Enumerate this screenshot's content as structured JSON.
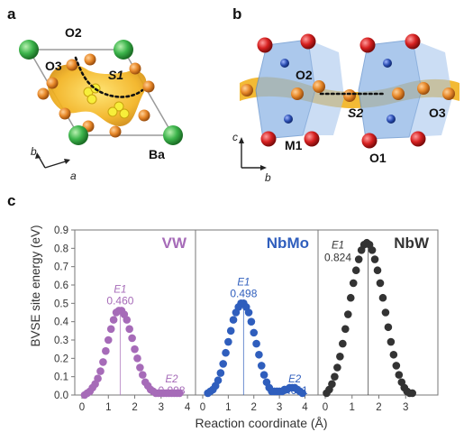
{
  "panels": {
    "a": {
      "letter": "a",
      "labels": {
        "o2": "O2",
        "o3": "O3",
        "s1": "S1",
        "ba": "Ba",
        "axis_b": "b",
        "axis_a": "a"
      }
    },
    "b": {
      "letter": "b",
      "labels": {
        "o2": "O2",
        "s2": "S2",
        "o3": "O3",
        "m1": "M1",
        "o1": "O1",
        "axis_c": "c",
        "axis_b": "b"
      }
    },
    "c": {
      "letter": "c"
    }
  },
  "colors": {
    "ba": "#3cb44b",
    "oxygen_orange": "#e8892a",
    "oxygen_red": "#d62020",
    "metal_blue": "#2a4db0",
    "polyhedra": "#8fb6e6",
    "isosurface": "#f2b21f",
    "path_dots": "#111111",
    "vw": "#a66bb8",
    "nbmo": "#2f5ebd",
    "nbw": "#333333"
  },
  "chart_data": {
    "type": "scatter",
    "ylabel": "BVSE site energy (eV)",
    "xlabel": "Reaction coordinate (Å)",
    "ylim": [
      0,
      0.9
    ],
    "yticks": [
      "0.0",
      "0.1",
      "0.2",
      "0.3",
      "0.4",
      "0.5",
      "0.6",
      "0.7",
      "0.8",
      "0.9"
    ],
    "subplots": [
      {
        "name": "VW",
        "xlim": [
          0,
          4.1
        ],
        "xticks": [
          "0",
          "1",
          "2",
          "3",
          "4"
        ],
        "peak_x": 1.45,
        "annotations": {
          "e1": "E1",
          "e1_value": "0.460",
          "e2": "E2",
          "e2_value": "0.008"
        },
        "x": [
          0.1,
          0.2,
          0.3,
          0.4,
          0.5,
          0.6,
          0.7,
          0.8,
          0.9,
          1.0,
          1.1,
          1.2,
          1.3,
          1.4,
          1.5,
          1.6,
          1.7,
          1.8,
          1.9,
          2.0,
          2.1,
          2.2,
          2.3,
          2.4,
          2.5,
          2.6,
          2.7,
          2.8,
          2.9,
          3.0,
          3.1,
          3.2,
          3.3,
          3.4,
          3.5,
          3.6,
          3.7
        ],
        "y": [
          0.0,
          0.01,
          0.02,
          0.04,
          0.06,
          0.09,
          0.13,
          0.18,
          0.24,
          0.3,
          0.36,
          0.41,
          0.45,
          0.46,
          0.46,
          0.44,
          0.41,
          0.36,
          0.31,
          0.25,
          0.2,
          0.15,
          0.11,
          0.07,
          0.05,
          0.03,
          0.02,
          0.01,
          0.01,
          0.01,
          0.01,
          0.01,
          0.01,
          0.01,
          0.01,
          0.01,
          0.01
        ]
      },
      {
        "name": "NbMo",
        "xlim": [
          0,
          4.3
        ],
        "xticks": [
          "0",
          "1",
          "2",
          "3",
          "4"
        ],
        "peak_x": 1.6,
        "annotations": {
          "e1": "E1",
          "e1_value": "0.498",
          "e2": "E2",
          "e2_value": "0.011"
        },
        "x": [
          0.2,
          0.3,
          0.4,
          0.5,
          0.6,
          0.7,
          0.8,
          0.9,
          1.0,
          1.1,
          1.2,
          1.3,
          1.4,
          1.5,
          1.6,
          1.7,
          1.8,
          1.9,
          2.0,
          2.1,
          2.2,
          2.3,
          2.4,
          2.5,
          2.6,
          2.7,
          2.8,
          2.9,
          3.0,
          3.1,
          3.2,
          3.3,
          3.4,
          3.5,
          3.6,
          3.7,
          3.8,
          3.9
        ],
        "y": [
          0.01,
          0.02,
          0.03,
          0.05,
          0.08,
          0.12,
          0.17,
          0.23,
          0.29,
          0.35,
          0.41,
          0.45,
          0.48,
          0.5,
          0.5,
          0.48,
          0.45,
          0.4,
          0.34,
          0.28,
          0.22,
          0.16,
          0.11,
          0.07,
          0.04,
          0.02,
          0.02,
          0.02,
          0.02,
          0.02,
          0.03,
          0.03,
          0.04,
          0.04,
          0.04,
          0.03,
          0.02,
          0.01
        ]
      },
      {
        "name": "NbW",
        "xlim": [
          0,
          4.0
        ],
        "xticks": [
          "0",
          "1",
          "2",
          "3"
        ],
        "peak_x": 1.6,
        "annotations": {
          "e1": "E1",
          "e1_value": "0.824"
        },
        "x": [
          0.05,
          0.15,
          0.25,
          0.35,
          0.45,
          0.55,
          0.65,
          0.75,
          0.85,
          0.95,
          1.05,
          1.15,
          1.25,
          1.35,
          1.45,
          1.55,
          1.65,
          1.75,
          1.85,
          1.95,
          2.05,
          2.15,
          2.25,
          2.35,
          2.45,
          2.55,
          2.65,
          2.75,
          2.85,
          2.95,
          3.05,
          3.15,
          3.25
        ],
        "y": [
          0.01,
          0.03,
          0.06,
          0.1,
          0.15,
          0.21,
          0.28,
          0.36,
          0.44,
          0.53,
          0.61,
          0.68,
          0.74,
          0.79,
          0.82,
          0.83,
          0.82,
          0.79,
          0.74,
          0.68,
          0.61,
          0.53,
          0.45,
          0.37,
          0.29,
          0.22,
          0.16,
          0.11,
          0.07,
          0.04,
          0.02,
          0.01,
          0.01
        ]
      }
    ]
  }
}
